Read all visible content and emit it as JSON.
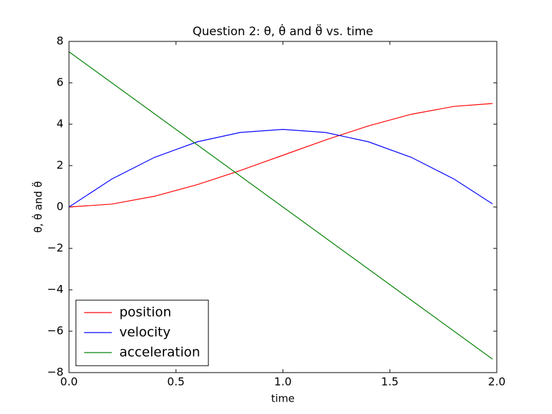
{
  "chart_data": {
    "type": "line",
    "title": "Question 2: θ, θ̇ and θ̈ vs. time",
    "x_label": "time",
    "y_label": "θ, θ̇ and θ̈",
    "x": [
      0,
      0.2,
      0.4,
      0.6,
      0.8,
      1.0,
      1.2,
      1.4,
      1.6,
      1.8,
      1.98
    ],
    "series": [
      {
        "name": "position",
        "color": "#ff0000",
        "values": [
          0,
          0.14,
          0.52,
          1.08,
          1.76,
          2.5,
          3.24,
          3.92,
          4.48,
          4.86,
          5.0
        ]
      },
      {
        "name": "velocity",
        "color": "#0000ff",
        "values": [
          0,
          1.35,
          2.4,
          3.15,
          3.6,
          3.75,
          3.6,
          3.15,
          2.4,
          1.35,
          0.15
        ]
      },
      {
        "name": "acceleration",
        "color": "#008000",
        "values": [
          7.5,
          6,
          4.5,
          3,
          1.5,
          0,
          -1.5,
          -3,
          -4.5,
          -6,
          -7.35
        ]
      }
    ],
    "xlim": [
      0,
      2
    ],
    "ylim": [
      -8,
      8
    ],
    "xticks": [
      {
        "value": 0,
        "label": "0.0"
      },
      {
        "value": 0.5,
        "label": "0.5"
      },
      {
        "value": 1,
        "label": "1.0"
      },
      {
        "value": 1.5,
        "label": "1.5"
      },
      {
        "value": 2,
        "label": "2.0"
      }
    ],
    "yticks": [
      {
        "value": -8,
        "label": "−8"
      },
      {
        "value": -6,
        "label": "−6"
      },
      {
        "value": -4,
        "label": "−4"
      },
      {
        "value": -2,
        "label": "−2"
      },
      0,
      2,
      4,
      6,
      8
    ],
    "grid": false,
    "legend": "lower left"
  }
}
